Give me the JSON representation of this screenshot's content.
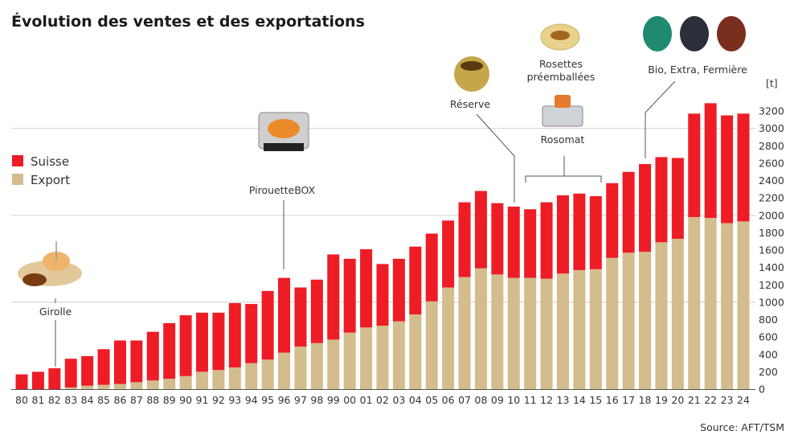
{
  "chart_data": {
    "type": "bar",
    "stacked": true,
    "title": "Évolution des ventes et des exportations",
    "unit": "[t]",
    "source": "Source: AFT/TSM",
    "ylim": [
      0,
      3200
    ],
    "yticks": [
      0,
      200,
      400,
      600,
      800,
      1000,
      1200,
      1400,
      1600,
      1800,
      2000,
      2200,
      2400,
      2600,
      2800,
      3000,
      3200
    ],
    "grid_lines": [
      1000,
      2000,
      3000
    ],
    "legend_position": "left",
    "categories": [
      "80",
      "81",
      "82",
      "83",
      "84",
      "85",
      "86",
      "87",
      "88",
      "89",
      "90",
      "91",
      "92",
      "93",
      "94",
      "95",
      "96",
      "97",
      "98",
      "99",
      "00",
      "01",
      "02",
      "03",
      "04",
      "05",
      "06",
      "07",
      "08",
      "09",
      "10",
      "11",
      "12",
      "13",
      "14",
      "15",
      "16",
      "17",
      "18",
      "19",
      "20",
      "21",
      "22",
      "23",
      "24"
    ],
    "series": [
      {
        "name": "Export",
        "color": "#d3bc8d",
        "values": [
          0,
          0,
          0,
          20,
          40,
          50,
          60,
          80,
          100,
          120,
          150,
          200,
          220,
          250,
          300,
          340,
          420,
          490,
          530,
          570,
          650,
          710,
          730,
          780,
          860,
          1010,
          1170,
          1290,
          1390,
          1320,
          1280,
          1280,
          1270,
          1330,
          1370,
          1380,
          1510,
          1570,
          1580,
          1690,
          1730,
          1980,
          1970,
          1910,
          1930
        ]
      },
      {
        "name": "Suisse",
        "color": "#ee1c25",
        "values": [
          170,
          200,
          240,
          330,
          340,
          410,
          500,
          480,
          560,
          640,
          700,
          680,
          660,
          740,
          680,
          790,
          860,
          680,
          730,
          980,
          850,
          900,
          710,
          720,
          780,
          780,
          770,
          860,
          890,
          820,
          820,
          790,
          880,
          900,
          880,
          840,
          860,
          930,
          1010,
          980,
          930,
          1190,
          1320,
          1240,
          1240
        ]
      }
    ],
    "annotations": [
      {
        "label": "Girolle",
        "year": "82"
      },
      {
        "label": "PirouetteBOX",
        "year": "96"
      },
      {
        "label": "Réserve",
        "year": "10"
      },
      {
        "label_lines": [
          "Rosettes",
          "préemballées"
        ]
      },
      {
        "label": "Rosomat",
        "years": [
          "11",
          "15"
        ]
      },
      {
        "label": "Bio, Extra, Fermière",
        "year": "18"
      }
    ]
  }
}
